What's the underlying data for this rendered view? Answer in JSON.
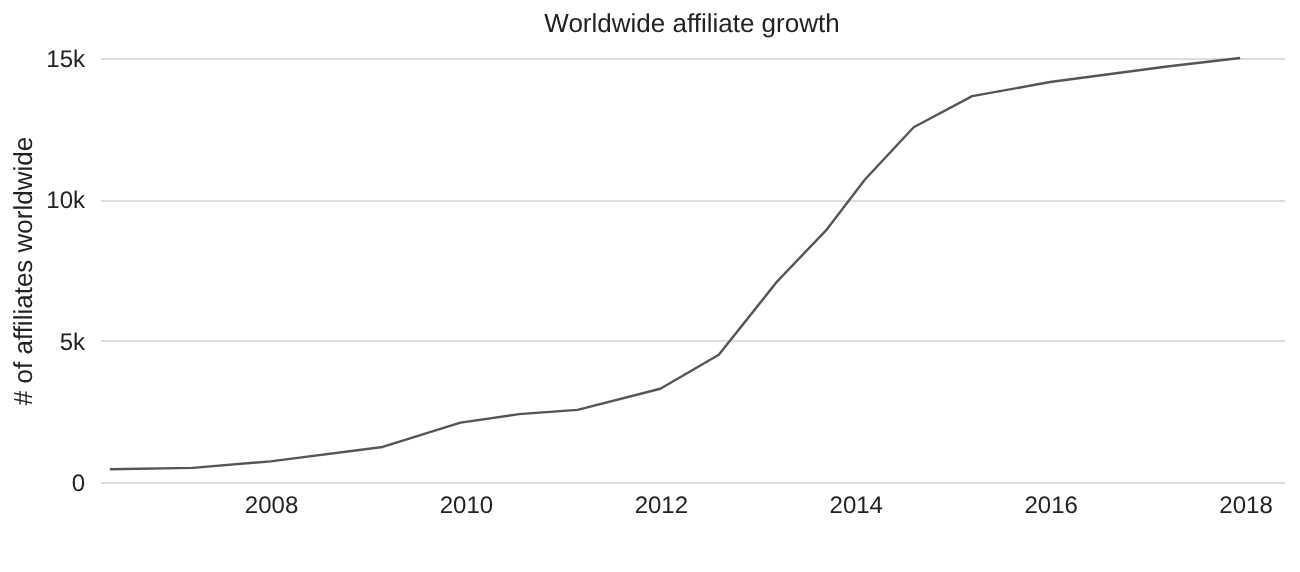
{
  "chart_data": {
    "type": "line",
    "title": "Worldwide affiliate growth",
    "ylabel": "# of affiliates worldwide",
    "x": [
      2006.35,
      2007.2,
      2008.0,
      2009.15,
      2009.95,
      2010.55,
      2011.15,
      2012.0,
      2012.6,
      2013.2,
      2013.7,
      2014.1,
      2014.6,
      2015.2,
      2016.0,
      2017.2,
      2017.95
    ],
    "series": [
      {
        "color": "#555555",
        "values": [
          450,
          500,
          730,
          1240,
          2100,
          2400,
          2550,
          3300,
          4500,
          7100,
          8900,
          10700,
          12550,
          13650,
          14150,
          14700,
          15000
        ]
      }
    ],
    "xlim": [
      2006.25,
      2018.4
    ],
    "xticks": [
      2008,
      2010,
      2012,
      2014,
      2016,
      2018
    ],
    "ylim": [
      0,
      15000
    ],
    "yticks": [
      {
        "value": 0,
        "label": "0"
      },
      {
        "value": 5000,
        "label": "5k"
      },
      {
        "value": 10000,
        "label": "10k"
      },
      {
        "value": 15000,
        "label": "15k"
      }
    ],
    "grid": "y",
    "legend": false,
    "line_style": "solid"
  }
}
